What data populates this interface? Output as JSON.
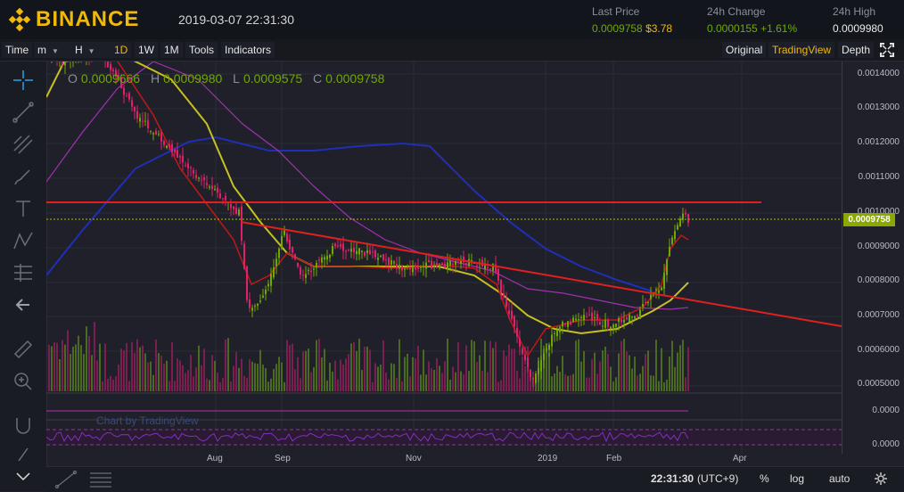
{
  "header": {
    "brand": "BINANCE",
    "datetime": "2019-03-07 22:31:30",
    "last_price_label": "Last Price",
    "last_price": "0.0009758",
    "last_price_usd": "$3.78",
    "change_label": "24h Change",
    "change_value": "0.0000155",
    "change_pct": "+1.61%",
    "high_label": "24h High",
    "high_value": "0.0009980"
  },
  "toolbar": {
    "time_label": "Time",
    "minute_select": "m",
    "hour_select": "H",
    "btn_1d": "1D",
    "btn_1w": "1W",
    "btn_1m": "1M",
    "tools": "Tools",
    "indicators": "Indicators",
    "original": "Original",
    "tradingview": "TradingView",
    "depth": "Depth"
  },
  "ohlc": {
    "o_label": "O",
    "o": "0.0009666",
    "h_label": "H",
    "h": "0.0009980",
    "l_label": "L",
    "l": "0.0009575",
    "c_label": "C",
    "c": "0.0009758"
  },
  "price_axis": {
    "ticks": [
      "0.0014000",
      "0.0013000",
      "0.0012000",
      "0.0011000",
      "0.0010000",
      "0.0009000",
      "0.0008000",
      "0.0007000",
      "0.0006000",
      "0.0005000"
    ],
    "current": "0.0009758",
    "indicator_ticks": [
      "0.0000",
      "0.0000"
    ]
  },
  "x_axis": {
    "ticks": [
      "Aug",
      "Sep",
      "Nov",
      "2019",
      "Feb",
      "Apr"
    ]
  },
  "watermark": "Chart by TradingView",
  "bottom": {
    "clock": "22:31:30",
    "timezone": "(UTC+9)",
    "percent": "%",
    "log": "log",
    "auto": "auto"
  },
  "colors": {
    "accent": "#f0b90b",
    "up": "#70a800",
    "down": "#e0206a",
    "trendline": "#e02020"
  }
}
